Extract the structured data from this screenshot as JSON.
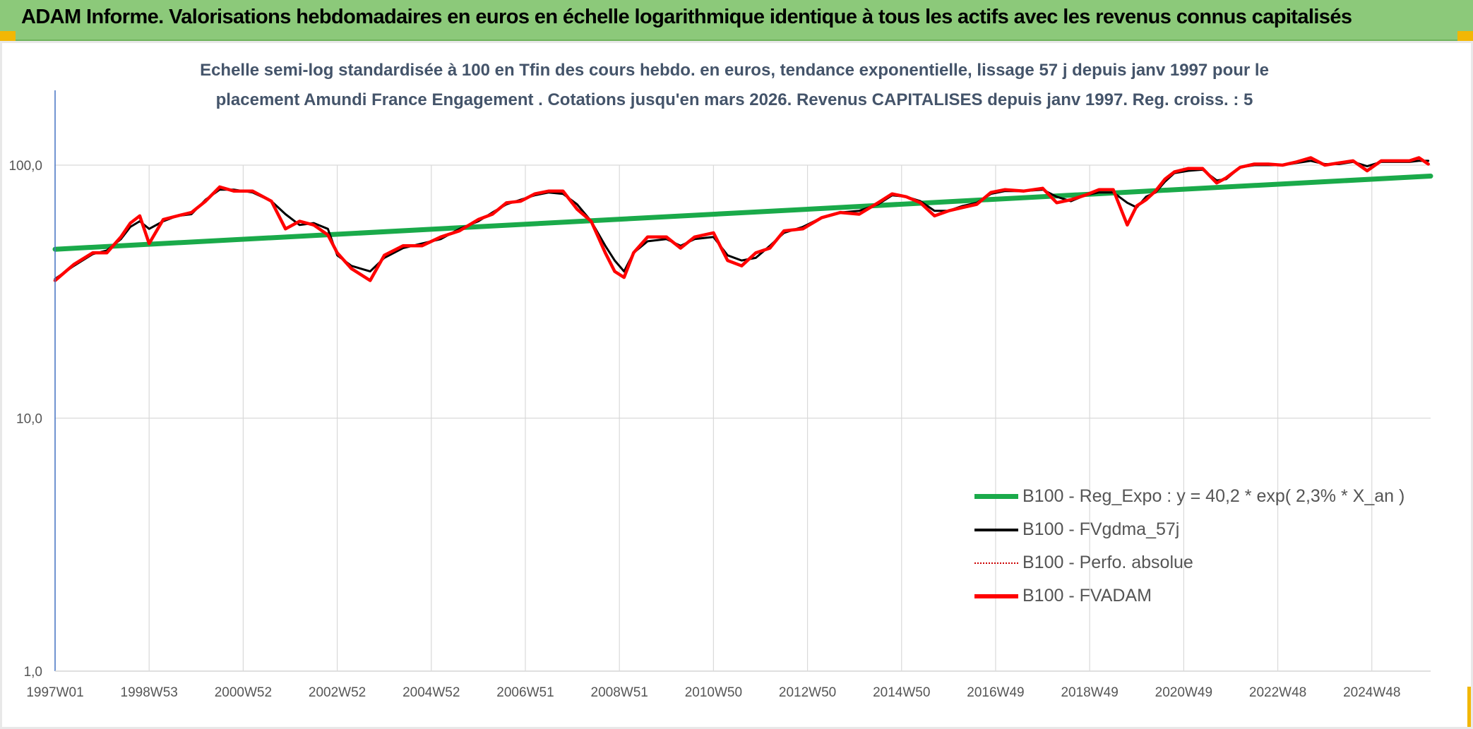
{
  "banner": {
    "title": "ADAM Informe. Valorisations hebdomadaires en euros en échelle logarithmique identique à tous les actifs avec les revenus connus capitalisés"
  },
  "colors": {
    "banner": "#8cc97a",
    "trend": "#1aaa4a",
    "smooth": "#000000",
    "perf": "#cc0000",
    "fvadam": "#ff0000",
    "grid": "#d9d9d9",
    "axis": "#4472c4",
    "subtitle": "#44546a"
  },
  "chart_data": {
    "type": "line",
    "subtitle_line1": "Echelle semi-log standardisée à 100 en Tfin des cours hebdo. en euros, tendance exponentielle, lissage 57 j depuis janv 1997 pour le",
    "subtitle_line2": "placement Amundi France Engagement . Cotations jusqu'en mars 2026. Revenus CAPITALISES depuis janv 1997. Reg. croiss. : 5",
    "y_scale": "log",
    "ylim": [
      1,
      100
    ],
    "y_ticks": [
      {
        "value": 100,
        "label": "100,0"
      },
      {
        "value": 10,
        "label": "10,0"
      },
      {
        "value": 1,
        "label": "1,0"
      }
    ],
    "xlim": [
      1997.0,
      2026.25
    ],
    "x_ticks": [
      {
        "value": 1997.0,
        "label": "1997W01"
      },
      {
        "value": 1999.0,
        "label": "1998W53"
      },
      {
        "value": 2001.0,
        "label": "2000W52"
      },
      {
        "value": 2003.0,
        "label": "2002W52"
      },
      {
        "value": 2005.0,
        "label": "2004W52"
      },
      {
        "value": 2007.0,
        "label": "2006W51"
      },
      {
        "value": 2009.0,
        "label": "2008W51"
      },
      {
        "value": 2011.0,
        "label": "2010W50"
      },
      {
        "value": 2013.0,
        "label": "2012W50"
      },
      {
        "value": 2015.0,
        "label": "2014W50"
      },
      {
        "value": 2017.0,
        "label": "2016W49"
      },
      {
        "value": 2019.0,
        "label": "2018W49"
      },
      {
        "value": 2021.0,
        "label": "2020W49"
      },
      {
        "value": 2023.0,
        "label": "2022W48"
      },
      {
        "value": 2025.0,
        "label": "2024W48"
      }
    ],
    "grid": true,
    "legend_position": "bottom-right",
    "series": [
      {
        "name": "B100 - Reg_Expo : y = 40,2 * exp( 2,3% *  X_an )",
        "role": "trend",
        "x": [
          1997.0,
          2026.25
        ],
        "y": [
          46.5,
          90.5
        ]
      },
      {
        "name": "B100 - FVgdma_57j",
        "role": "smooth",
        "x": [
          1997.0,
          1997.4,
          1997.8,
          1998.1,
          1998.4,
          1998.6,
          1998.8,
          1999.0,
          1999.3,
          1999.6,
          1999.9,
          2000.2,
          2000.5,
          2000.8,
          2001.2,
          2001.6,
          2001.9,
          2002.2,
          2002.5,
          2002.8,
          2003.0,
          2003.3,
          2003.7,
          2004.0,
          2004.4,
          2004.8,
          2005.2,
          2005.6,
          2006.0,
          2006.3,
          2006.6,
          2006.9,
          2007.2,
          2007.5,
          2007.8,
          2008.1,
          2008.4,
          2008.7,
          2008.9,
          2009.1,
          2009.3,
          2009.6,
          2010.0,
          2010.3,
          2010.6,
          2011.0,
          2011.3,
          2011.6,
          2011.9,
          2012.2,
          2012.5,
          2012.9,
          2013.3,
          2013.7,
          2014.1,
          2014.5,
          2014.8,
          2015.1,
          2015.4,
          2015.7,
          2016.0,
          2016.3,
          2016.6,
          2016.9,
          2017.2,
          2017.6,
          2018.0,
          2018.3,
          2018.6,
          2018.9,
          2019.2,
          2019.5,
          2019.8,
          2020.0,
          2020.2,
          2020.4,
          2020.6,
          2020.8,
          2021.1,
          2021.4,
          2021.7,
          2021.9,
          2022.2,
          2022.5,
          2022.8,
          2023.1,
          2023.4,
          2023.7,
          2024.0,
          2024.3,
          2024.6,
          2024.9,
          2025.2,
          2025.5,
          2025.8,
          2026.0,
          2026.2
        ],
        "y": [
          35.5,
          40,
          44.5,
          46,
          51,
          57,
          60,
          56,
          60,
          63,
          64,
          73,
          80,
          80,
          78,
          72,
          64,
          58,
          59,
          56,
          44,
          40,
          38,
          43,
          47,
          49,
          51,
          56,
          60,
          65,
          70,
          73,
          76,
          78,
          77,
          70,
          60,
          48,
          42,
          38,
          45,
          50,
          51,
          48,
          51,
          52,
          44,
          42,
          43,
          48,
          54,
          57,
          62,
          65,
          66,
          70,
          76,
          75,
          72,
          66,
          66,
          69,
          71,
          77,
          79,
          79,
          80,
          75,
          72,
          76,
          78,
          78,
          71,
          68,
          75,
          78,
          86,
          93,
          95,
          96,
          87,
          88,
          98,
          100,
          100,
          100,
          102,
          104,
          101,
          101,
          103,
          99,
          103,
          103,
          103,
          104,
          104
        ]
      },
      {
        "name": "B100 - Perfo. absolue",
        "role": "perf",
        "x": [
          1997.0,
          1997.4,
          1997.8,
          1998.1,
          1998.4,
          1998.6,
          1998.8,
          1999.0,
          1999.3,
          1999.6,
          1999.9,
          2000.2,
          2000.5,
          2000.8,
          2001.2,
          2001.6,
          2001.9,
          2002.2,
          2002.5,
          2002.8,
          2003.0,
          2003.3,
          2003.7,
          2004.0,
          2004.4,
          2004.8,
          2005.2,
          2005.6,
          2006.0,
          2006.3,
          2006.6,
          2006.9,
          2007.2,
          2007.5,
          2007.8,
          2008.1,
          2008.4,
          2008.7,
          2008.9,
          2009.1,
          2009.3,
          2009.6,
          2010.0,
          2010.3,
          2010.6,
          2011.0,
          2011.3,
          2011.6,
          2011.9,
          2012.2,
          2012.5,
          2012.9,
          2013.3,
          2013.7,
          2014.1,
          2014.5,
          2014.8,
          2015.1,
          2015.4,
          2015.7,
          2016.0,
          2016.3,
          2016.6,
          2016.9,
          2017.2,
          2017.6,
          2018.0,
          2018.3,
          2018.6,
          2018.9,
          2019.2,
          2019.5,
          2019.8,
          2020.0,
          2020.2,
          2020.4,
          2020.6,
          2020.8,
          2021.1,
          2021.4,
          2021.7,
          2021.9,
          2022.2,
          2022.5,
          2022.8,
          2023.1,
          2023.4,
          2023.7,
          2024.0,
          2024.3,
          2024.6,
          2024.9,
          2025.2,
          2025.5,
          2025.8,
          2026.0,
          2026.2
        ],
        "y": [
          35,
          40.5,
          45,
          45,
          52,
          59,
          63,
          49,
          61,
          63,
          65,
          72,
          82,
          79,
          79,
          72,
          56,
          60,
          58,
          53,
          45,
          39,
          35,
          44,
          48,
          48,
          52,
          55,
          61,
          64,
          71,
          72,
          77,
          79,
          79,
          67,
          60,
          45,
          38,
          36,
          45,
          52,
          52,
          47,
          52,
          54,
          42,
          40,
          45,
          47,
          55,
          56,
          62,
          65,
          64,
          71,
          77,
          75,
          71,
          63,
          66,
          68,
          70,
          78,
          80,
          79,
          81,
          71,
          73,
          76,
          80,
          80,
          58,
          69,
          73,
          79,
          88,
          94,
          97,
          97,
          85,
          89,
          98,
          101,
          101,
          100,
          103,
          107,
          100,
          102,
          104,
          95,
          104,
          104,
          104,
          107,
          101
        ]
      },
      {
        "name": "B100 - FVADAM",
        "role": "fvadam",
        "x": [
          1997.0,
          1997.4,
          1997.8,
          1998.1,
          1998.4,
          1998.6,
          1998.8,
          1999.0,
          1999.3,
          1999.6,
          1999.9,
          2000.2,
          2000.5,
          2000.8,
          2001.2,
          2001.6,
          2001.9,
          2002.2,
          2002.5,
          2002.8,
          2003.0,
          2003.3,
          2003.7,
          2004.0,
          2004.4,
          2004.8,
          2005.2,
          2005.6,
          2006.0,
          2006.3,
          2006.6,
          2006.9,
          2007.2,
          2007.5,
          2007.8,
          2008.1,
          2008.4,
          2008.7,
          2008.9,
          2009.1,
          2009.3,
          2009.6,
          2010.0,
          2010.3,
          2010.6,
          2011.0,
          2011.3,
          2011.6,
          2011.9,
          2012.2,
          2012.5,
          2012.9,
          2013.3,
          2013.7,
          2014.1,
          2014.5,
          2014.8,
          2015.1,
          2015.4,
          2015.7,
          2016.0,
          2016.3,
          2016.6,
          2016.9,
          2017.2,
          2017.6,
          2018.0,
          2018.3,
          2018.6,
          2018.9,
          2019.2,
          2019.5,
          2019.8,
          2020.0,
          2020.2,
          2020.4,
          2020.6,
          2020.8,
          2021.1,
          2021.4,
          2021.7,
          2021.9,
          2022.2,
          2022.5,
          2022.8,
          2023.1,
          2023.4,
          2023.7,
          2024.0,
          2024.3,
          2024.6,
          2024.9,
          2025.2,
          2025.5,
          2025.8,
          2026.0,
          2026.2
        ],
        "y": [
          35,
          40.5,
          45,
          45,
          52,
          59,
          63,
          49,
          61,
          63,
          65,
          72,
          82,
          79,
          79,
          72,
          56,
          60,
          58,
          53,
          45,
          39,
          35,
          44,
          48,
          48,
          52,
          55,
          61,
          64,
          71,
          72,
          77,
          79,
          79,
          67,
          60,
          45,
          38,
          36,
          45,
          52,
          52,
          47,
          52,
          54,
          42,
          40,
          45,
          47,
          55,
          56,
          62,
          65,
          64,
          71,
          77,
          75,
          71,
          63,
          66,
          68,
          70,
          78,
          80,
          79,
          81,
          71,
          73,
          76,
          80,
          80,
          58,
          69,
          73,
          79,
          88,
          94,
          97,
          97,
          85,
          89,
          98,
          101,
          101,
          100,
          103,
          107,
          100,
          102,
          104,
          95,
          104,
          104,
          104,
          107,
          101
        ]
      }
    ]
  }
}
